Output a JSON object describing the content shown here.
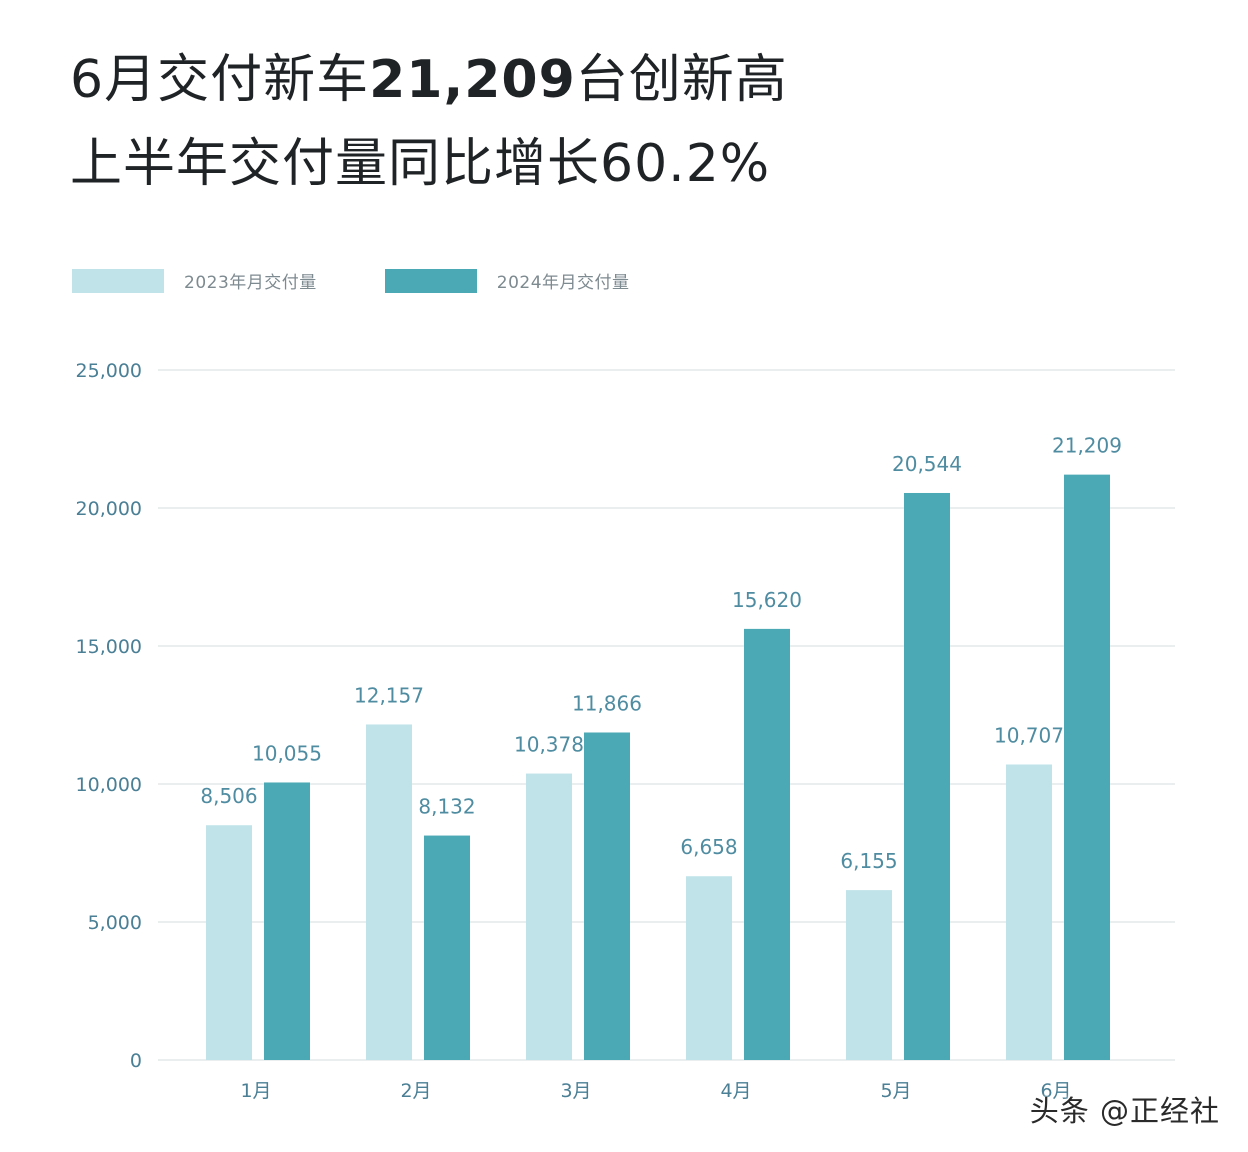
{
  "header": {
    "line1_prefix": "6月交付新车",
    "line1_number": "21,209",
    "line1_suffix": "台创新高",
    "line2": "上半年交付量同比增长60.2%"
  },
  "watermark": "头条 @正经社",
  "colors": {
    "series_2023": "#bfe3e9",
    "series_2024": "#4aa9b4",
    "axis_text": "#4a7f95",
    "value_text": "#4f8ca1",
    "grid": "#e3e8ea"
  },
  "chart_data": {
    "type": "bar",
    "categories": [
      "1月",
      "2月",
      "3月",
      "4月",
      "5月",
      "6月"
    ],
    "series": [
      {
        "name": "2023年月交付量",
        "values": [
          8506,
          12157,
          10378,
          6658,
          6155,
          10707
        ],
        "labels": [
          "8,506",
          "12,157",
          "10,378",
          "6,658",
          "6,155",
          "10,707"
        ]
      },
      {
        "name": "2024年月交付量",
        "values": [
          10055,
          8132,
          11866,
          15620,
          20544,
          21209
        ],
        "labels": [
          "10,055",
          "8,132",
          "11,866",
          "15,620",
          "20,544",
          "21,209"
        ]
      }
    ],
    "yticks": [
      0,
      5000,
      10000,
      15000,
      20000,
      25000
    ],
    "ytick_labels": [
      "0",
      "5,000",
      "10,000",
      "15,000",
      "20,000",
      "25,000"
    ],
    "ylim": [
      0,
      25000
    ],
    "grid": true,
    "legend": "top-left"
  }
}
